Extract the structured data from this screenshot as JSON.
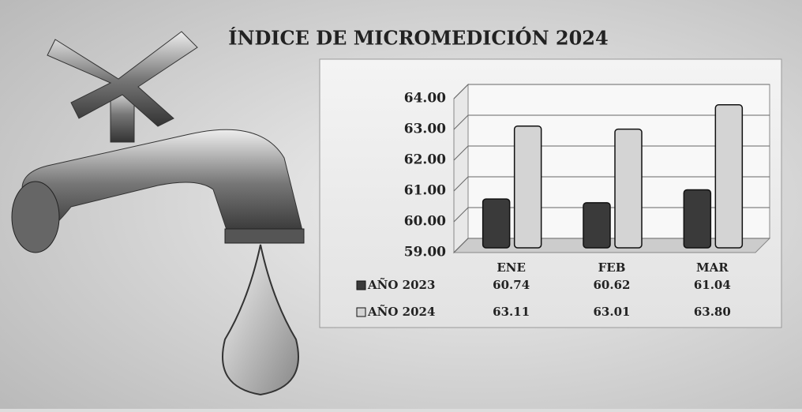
{
  "chart_data": {
    "type": "bar",
    "title": "ÍNDICE DE MICROMEDICIÓN 2024",
    "categories": [
      "ENE",
      "FEB",
      "MAR"
    ],
    "series": [
      {
        "name": "AÑO 2023",
        "color": "#3a3a3a",
        "values": [
          60.74,
          60.62,
          61.04
        ],
        "value_labels": [
          "60.74",
          "60.62",
          "61.04"
        ]
      },
      {
        "name": "AÑO 2024",
        "color": "#d4d4d4",
        "values": [
          63.11,
          63.01,
          63.8
        ],
        "value_labels": [
          "63.11",
          "63.01",
          "63.80"
        ]
      }
    ],
    "ylim": [
      59,
      64
    ],
    "yticks": [
      {
        "value": 59,
        "label": "59.00"
      },
      {
        "value": 60,
        "label": "60.00"
      },
      {
        "value": 61,
        "label": "61.00"
      },
      {
        "value": 62,
        "label": "62.00"
      },
      {
        "value": 63,
        "label": "63.00"
      },
      {
        "value": 64,
        "label": "64.00"
      }
    ],
    "grid": true
  }
}
